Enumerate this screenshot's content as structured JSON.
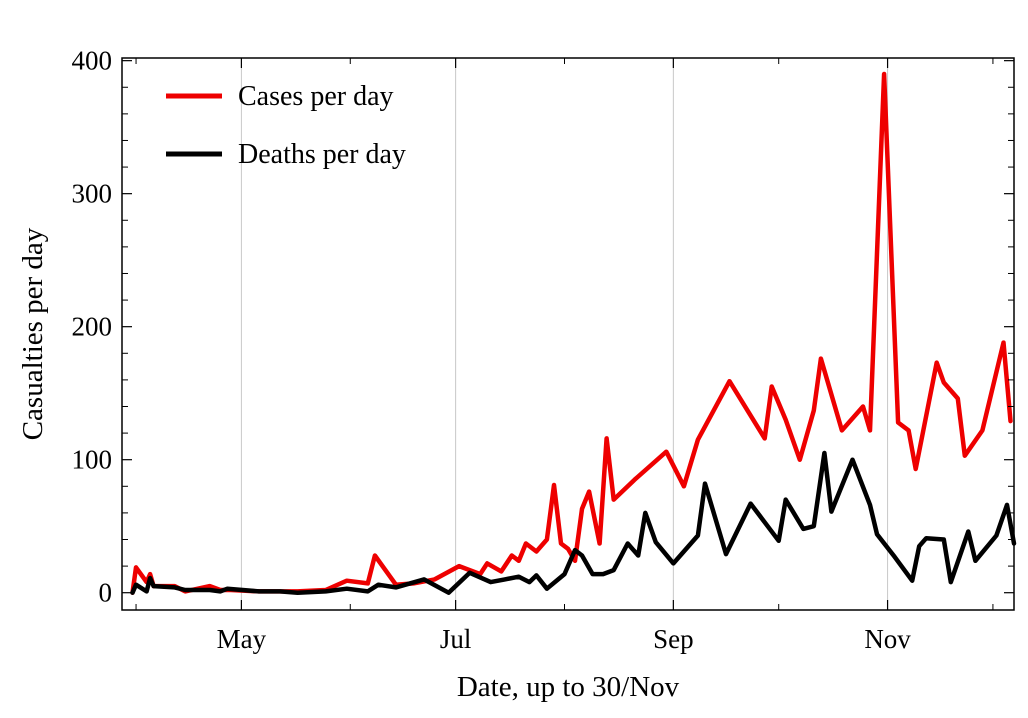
{
  "chart_data": {
    "type": "line",
    "title": "",
    "xlabel": "Date, up to 30/Nov",
    "ylabel": "Casualties per day",
    "x_ticks": [
      {
        "date": "2020-05-01",
        "label": "May"
      },
      {
        "date": "2020-07-01",
        "label": "Jul"
      },
      {
        "date": "2020-09-01",
        "label": "Sep"
      },
      {
        "date": "2020-11-01",
        "label": "Nov"
      }
    ],
    "y_ticks": [
      0,
      100,
      200,
      300,
      400
    ],
    "xlim": [
      "2020-03-28",
      "2020-12-07"
    ],
    "ylim": [
      -13,
      402
    ],
    "grid": "vertical",
    "legend_position": "top-left",
    "series": [
      {
        "name": "Cases per day",
        "color": "#ee0000",
        "points": [
          [
            "2020-03-31",
            0
          ],
          [
            "2020-04-01",
            19
          ],
          [
            "2020-04-04",
            8
          ],
          [
            "2020-04-05",
            14
          ],
          [
            "2020-04-06",
            5
          ],
          [
            "2020-04-12",
            5
          ],
          [
            "2020-04-15",
            1
          ],
          [
            "2020-04-22",
            5
          ],
          [
            "2020-04-25",
            2
          ],
          [
            "2020-04-28",
            2
          ],
          [
            "2020-05-06",
            1
          ],
          [
            "2020-05-12",
            1
          ],
          [
            "2020-05-17",
            1
          ],
          [
            "2020-05-25",
            2
          ],
          [
            "2020-05-31",
            9
          ],
          [
            "2020-06-06",
            7
          ],
          [
            "2020-06-08",
            28
          ],
          [
            "2020-06-14",
            6
          ],
          [
            "2020-06-19",
            7
          ],
          [
            "2020-06-25",
            10
          ],
          [
            "2020-07-02",
            20
          ],
          [
            "2020-07-08",
            14
          ],
          [
            "2020-07-10",
            22
          ],
          [
            "2020-07-14",
            16
          ],
          [
            "2020-07-17",
            28
          ],
          [
            "2020-07-19",
            24
          ],
          [
            "2020-07-21",
            37
          ],
          [
            "2020-07-24",
            31
          ],
          [
            "2020-07-27",
            40
          ],
          [
            "2020-07-29",
            81
          ],
          [
            "2020-07-31",
            37
          ],
          [
            "2020-08-02",
            33
          ],
          [
            "2020-08-04",
            24
          ],
          [
            "2020-08-06",
            63
          ],
          [
            "2020-08-08",
            76
          ],
          [
            "2020-08-11",
            37
          ],
          [
            "2020-08-13",
            116
          ],
          [
            "2020-08-15",
            70
          ],
          [
            "2020-08-21",
            85
          ],
          [
            "2020-08-30",
            106
          ],
          [
            "2020-09-04",
            80
          ],
          [
            "2020-09-08",
            115
          ],
          [
            "2020-09-17",
            159
          ],
          [
            "2020-09-27",
            116
          ],
          [
            "2020-09-29",
            155
          ],
          [
            "2020-10-03",
            130
          ],
          [
            "2020-10-07",
            100
          ],
          [
            "2020-10-11",
            137
          ],
          [
            "2020-10-13",
            176
          ],
          [
            "2020-10-19",
            122
          ],
          [
            "2020-10-25",
            140
          ],
          [
            "2020-10-27",
            122
          ],
          [
            "2020-10-31",
            390
          ],
          [
            "2020-10-31",
            390
          ],
          [
            "2020-11-04",
            128
          ],
          [
            "2020-11-07",
            122
          ],
          [
            "2020-11-09",
            93
          ],
          [
            "2020-11-15",
            173
          ],
          [
            "2020-11-17",
            158
          ],
          [
            "2020-11-21",
            146
          ],
          [
            "2020-11-23",
            103
          ],
          [
            "2020-11-28",
            122
          ],
          [
            "2020-12-04",
            188
          ],
          [
            "2020-12-06",
            129
          ]
        ]
      },
      {
        "name": "Deaths per day",
        "color": "#000000",
        "points": [
          [
            "2020-03-31",
            0
          ],
          [
            "2020-04-01",
            6
          ],
          [
            "2020-04-04",
            1
          ],
          [
            "2020-04-05",
            11
          ],
          [
            "2020-04-06",
            5
          ],
          [
            "2020-04-12",
            4
          ],
          [
            "2020-04-15",
            2
          ],
          [
            "2020-04-22",
            2
          ],
          [
            "2020-04-25",
            1
          ],
          [
            "2020-04-27",
            3
          ],
          [
            "2020-05-06",
            1
          ],
          [
            "2020-05-12",
            1
          ],
          [
            "2020-05-17",
            0
          ],
          [
            "2020-05-25",
            1
          ],
          [
            "2020-05-31",
            3
          ],
          [
            "2020-06-06",
            1
          ],
          [
            "2020-06-09",
            6
          ],
          [
            "2020-06-14",
            4
          ],
          [
            "2020-06-22",
            10
          ],
          [
            "2020-06-29",
            0
          ],
          [
            "2020-07-05",
            15
          ],
          [
            "2020-07-11",
            8
          ],
          [
            "2020-07-15",
            10
          ],
          [
            "2020-07-19",
            12
          ],
          [
            "2020-07-22",
            8
          ],
          [
            "2020-07-24",
            13
          ],
          [
            "2020-07-27",
            3
          ],
          [
            "2020-08-01",
            14
          ],
          [
            "2020-08-04",
            32
          ],
          [
            "2020-08-06",
            28
          ],
          [
            "2020-08-09",
            14
          ],
          [
            "2020-08-12",
            14
          ],
          [
            "2020-08-15",
            17
          ],
          [
            "2020-08-19",
            37
          ],
          [
            "2020-08-22",
            28
          ],
          [
            "2020-08-24",
            60
          ],
          [
            "2020-08-27",
            38
          ],
          [
            "2020-09-01",
            22
          ],
          [
            "2020-09-08",
            43
          ],
          [
            "2020-09-10",
            82
          ],
          [
            "2020-09-16",
            29
          ],
          [
            "2020-09-23",
            67
          ],
          [
            "2020-10-01",
            39
          ],
          [
            "2020-10-03",
            70
          ],
          [
            "2020-10-08",
            48
          ],
          [
            "2020-10-11",
            50
          ],
          [
            "2020-10-14",
            105
          ],
          [
            "2020-10-16",
            61
          ],
          [
            "2020-10-22",
            100
          ],
          [
            "2020-10-27",
            66
          ],
          [
            "2020-10-29",
            44
          ],
          [
            "2020-11-03",
            27
          ],
          [
            "2020-11-08",
            9
          ],
          [
            "2020-11-10",
            35
          ],
          [
            "2020-11-12",
            41
          ],
          [
            "2020-11-17",
            40
          ],
          [
            "2020-11-19",
            8
          ],
          [
            "2020-11-24",
            46
          ],
          [
            "2020-11-26",
            24
          ],
          [
            "2020-12-02",
            43
          ],
          [
            "2020-12-05",
            66
          ],
          [
            "2020-12-07",
            37
          ]
        ]
      }
    ]
  }
}
